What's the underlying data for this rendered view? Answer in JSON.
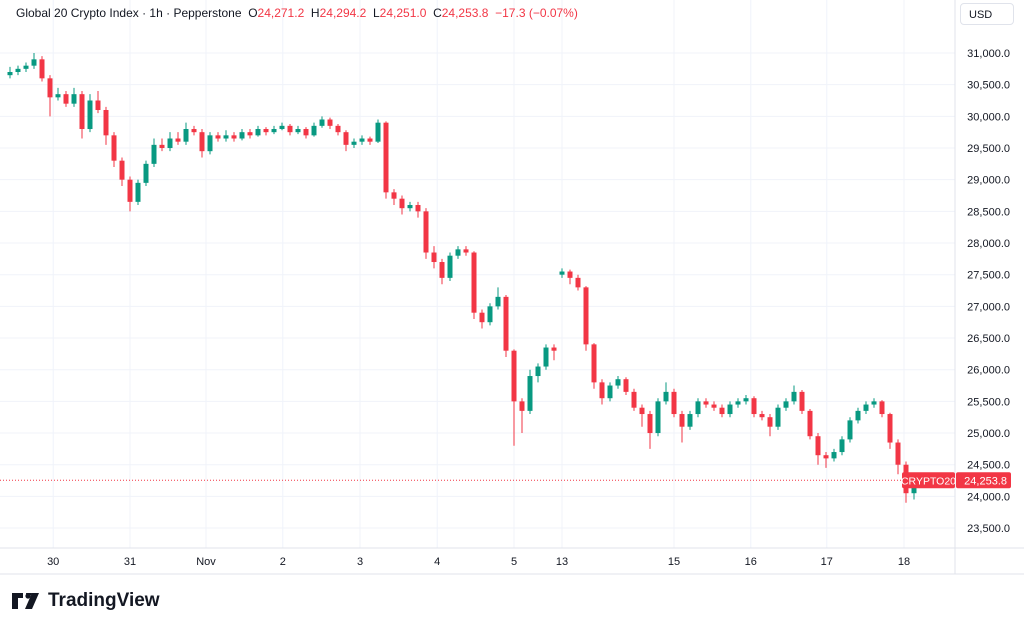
{
  "header": {
    "symbol_name": "Global 20 Crypto Index",
    "interval": "1h",
    "source": "Pepperstone",
    "o_label": "O",
    "o_value": "24,271.2",
    "h_label": "H",
    "h_value": "24,294.2",
    "l_label": "L",
    "l_value": "24,251.0",
    "c_label": "C",
    "c_value": "24,253.8",
    "change": "−17.3 (−0.07%)"
  },
  "currency_button": "USD",
  "branding": "TradingView",
  "chart_data": {
    "type": "candlestick",
    "title": "Global 20 Crypto Index · 1h · Pepperstone",
    "ylim": [
      23300,
      31300
    ],
    "y_ticks": [
      "31,000.0",
      "30,500.0",
      "30,000.0",
      "29,500.0",
      "29,000.0",
      "28,500.0",
      "28,000.0",
      "27,500.0",
      "27,000.0",
      "26,500.0",
      "26,000.0",
      "25,500.0",
      "25,000.0",
      "24,500.0",
      "24,000.0",
      "23,500.0"
    ],
    "y_tick_values": [
      31000,
      30500,
      30000,
      29500,
      29000,
      28500,
      28000,
      27500,
      27000,
      26500,
      26000,
      25500,
      25000,
      24500,
      24000,
      23500
    ],
    "x_ticks": [
      "30",
      "31",
      "Nov",
      "2",
      "3",
      "4",
      "5",
      "13",
      "15",
      "16",
      "17",
      "18"
    ],
    "grid": true,
    "colors": {
      "up": "#089981",
      "down": "#f23645",
      "grid": "#f0f3fa"
    },
    "last_price": {
      "ticker": "CRYPTO20",
      "value": 24253.8,
      "label": "24,253.8"
    },
    "candles_ohlc": [
      [
        30650,
        30780,
        30600,
        30700
      ],
      [
        30700,
        30800,
        30650,
        30750
      ],
      [
        30750,
        30850,
        30700,
        30800
      ],
      [
        30800,
        31000,
        30750,
        30900
      ],
      [
        30900,
        30950,
        30550,
        30600
      ],
      [
        30600,
        30650,
        30000,
        30300
      ],
      [
        30300,
        30450,
        30250,
        30350
      ],
      [
        30350,
        30400,
        30150,
        30200
      ],
      [
        30200,
        30450,
        30150,
        30350
      ],
      [
        30350,
        30400,
        29650,
        29800
      ],
      [
        29800,
        30350,
        29750,
        30250
      ],
      [
        30250,
        30400,
        30050,
        30100
      ],
      [
        30100,
        30150,
        29550,
        29700
      ],
      [
        29700,
        29750,
        29200,
        29300
      ],
      [
        29300,
        29350,
        28900,
        29000
      ],
      [
        29000,
        29050,
        28500,
        28650
      ],
      [
        28650,
        29000,
        28600,
        28950
      ],
      [
        28950,
        29300,
        28900,
        29250
      ],
      [
        29250,
        29650,
        29200,
        29550
      ],
      [
        29550,
        29650,
        29450,
        29500
      ],
      [
        29500,
        29750,
        29450,
        29650
      ],
      [
        29650,
        29750,
        29550,
        29600
      ],
      [
        29600,
        29900,
        29550,
        29800
      ],
      [
        29800,
        29850,
        29700,
        29750
      ],
      [
        29750,
        29800,
        29350,
        29450
      ],
      [
        29450,
        29750,
        29400,
        29700
      ],
      [
        29700,
        29750,
        29600,
        29650
      ],
      [
        29650,
        29780,
        29600,
        29700
      ],
      [
        29700,
        29750,
        29600,
        29650
      ],
      [
        29650,
        29800,
        29620,
        29750
      ],
      [
        29750,
        29800,
        29650,
        29700
      ],
      [
        29700,
        29850,
        29680,
        29800
      ],
      [
        29800,
        29830,
        29700,
        29750
      ],
      [
        29750,
        29850,
        29720,
        29800
      ],
      [
        29800,
        29900,
        29780,
        29850
      ],
      [
        29850,
        29880,
        29700,
        29750
      ],
      [
        29750,
        29850,
        29720,
        29800
      ],
      [
        29800,
        29830,
        29650,
        29700
      ],
      [
        29700,
        29900,
        29680,
        29850
      ],
      [
        29850,
        30000,
        29820,
        29950
      ],
      [
        29950,
        29980,
        29800,
        29850
      ],
      [
        29850,
        29880,
        29700,
        29750
      ],
      [
        29750,
        29780,
        29450,
        29550
      ],
      [
        29550,
        29650,
        29500,
        29600
      ],
      [
        29600,
        29700,
        29550,
        29650
      ],
      [
        29650,
        29680,
        29550,
        29600
      ],
      [
        29600,
        29950,
        29580,
        29900
      ],
      [
        29900,
        29920,
        28700,
        28800
      ],
      [
        28800,
        28850,
        28600,
        28700
      ],
      [
        28700,
        28750,
        28450,
        28550
      ],
      [
        28550,
        28650,
        28500,
        28600
      ],
      [
        28600,
        28650,
        28400,
        28500
      ],
      [
        28500,
        28550,
        27750,
        27850
      ],
      [
        27850,
        27950,
        27600,
        27700
      ],
      [
        27700,
        27750,
        27350,
        27450
      ],
      [
        27450,
        27850,
        27400,
        27800
      ],
      [
        27800,
        27950,
        27750,
        27900
      ],
      [
        27900,
        27950,
        27800,
        27850
      ],
      [
        27850,
        27870,
        26800,
        26900
      ],
      [
        26900,
        26950,
        26650,
        26750
      ],
      [
        26750,
        27050,
        26700,
        27000
      ],
      [
        27000,
        27300,
        26950,
        27150
      ],
      [
        27150,
        27180,
        26200,
        26300
      ],
      [
        26300,
        26320,
        24800,
        25500
      ],
      [
        25500,
        25550,
        25000,
        25350
      ],
      [
        25350,
        26000,
        25300,
        25900
      ],
      [
        25900,
        26100,
        25800,
        26050
      ],
      [
        26050,
        26400,
        26000,
        26350
      ],
      [
        26350,
        26400,
        26150,
        26300
      ],
      [
        27500,
        27600,
        27450,
        27550
      ],
      [
        27550,
        27580,
        27350,
        27450
      ],
      [
        27450,
        27500,
        27250,
        27300
      ],
      [
        27300,
        27320,
        26300,
        26400
      ],
      [
        26400,
        26420,
        25700,
        25800
      ],
      [
        25800,
        25850,
        25450,
        25550
      ],
      [
        25550,
        25800,
        25500,
        25750
      ],
      [
        25750,
        25900,
        25700,
        25850
      ],
      [
        25850,
        25880,
        25600,
        25650
      ],
      [
        25650,
        25700,
        25350,
        25400
      ],
      [
        25400,
        25450,
        25100,
        25300
      ],
      [
        25300,
        25350,
        24750,
        25000
      ],
      [
        25000,
        25550,
        24950,
        25500
      ],
      [
        25500,
        25800,
        25450,
        25650
      ],
      [
        25650,
        25700,
        25250,
        25300
      ],
      [
        25300,
        25350,
        24850,
        25100
      ],
      [
        25100,
        25350,
        25050,
        25300
      ],
      [
        25300,
        25550,
        25250,
        25500
      ],
      [
        25500,
        25550,
        25400,
        25450
      ],
      [
        25450,
        25500,
        25350,
        25400
      ],
      [
        25400,
        25450,
        25250,
        25300
      ],
      [
        25300,
        25500,
        25250,
        25450
      ],
      [
        25450,
        25550,
        25400,
        25500
      ],
      [
        25500,
        25600,
        25450,
        25550
      ],
      [
        25550,
        25580,
        25250,
        25300
      ],
      [
        25300,
        25350,
        25200,
        25250
      ],
      [
        25250,
        25300,
        24950,
        25100
      ],
      [
        25100,
        25450,
        25050,
        25400
      ],
      [
        25400,
        25550,
        25350,
        25500
      ],
      [
        25500,
        25750,
        25450,
        25650
      ],
      [
        25650,
        25680,
        25300,
        25350
      ],
      [
        25350,
        25380,
        24900,
        24950
      ],
      [
        24950,
        25000,
        24500,
        24650
      ],
      [
        24650,
        24700,
        24450,
        24600
      ],
      [
        24600,
        24750,
        24550,
        24700
      ],
      [
        24700,
        24950,
        24650,
        24900
      ],
      [
        24900,
        25250,
        24850,
        25200
      ],
      [
        25200,
        25400,
        25150,
        25350
      ],
      [
        25350,
        25500,
        25300,
        25450
      ],
      [
        25450,
        25550,
        25400,
        25500
      ],
      [
        25500,
        25520,
        25250,
        25300
      ],
      [
        25300,
        25320,
        24750,
        24850
      ],
      [
        24850,
        24900,
        24350,
        24500
      ],
      [
        24500,
        24550,
        23900,
        24050
      ],
      [
        24050,
        24250,
        23950,
        24200
      ],
      [
        24271.2,
        24294.2,
        24251.0,
        24253.8
      ]
    ]
  }
}
